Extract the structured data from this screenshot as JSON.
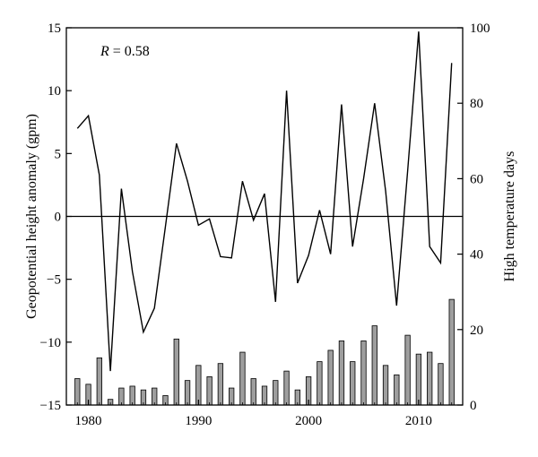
{
  "chart_data": {
    "type": "bar+line",
    "annotation": {
      "label": "R",
      "text": " = 0.58"
    },
    "x_axis": {
      "range": [
        1978,
        2014
      ],
      "ticks": [
        1980,
        1990,
        2000,
        2010
      ],
      "tick_labels": [
        "1980",
        "1990",
        "2000",
        "2010"
      ]
    },
    "y_left": {
      "label": "Geopotential height anomaly (gpm)",
      "range": [
        -15,
        15
      ],
      "ticks": [
        -15,
        -10,
        -5,
        0,
        5,
        10,
        15
      ],
      "tick_labels": [
        "−15",
        "−10",
        "−5",
        "0",
        "5",
        "10",
        "15"
      ]
    },
    "y_right": {
      "label": "High temperature days",
      "range": [
        0,
        100
      ],
      "ticks": [
        0,
        20,
        40,
        60,
        80,
        100
      ],
      "tick_labels": [
        "0",
        "20",
        "40",
        "60",
        "80",
        "100"
      ]
    },
    "series": [
      {
        "type": "line",
        "axis": "left",
        "x": [
          1979,
          1980,
          1981,
          1982,
          1983,
          1984,
          1985,
          1986,
          1987,
          1988,
          1989,
          1990,
          1991,
          1992,
          1993,
          1994,
          1995,
          1996,
          1997,
          1998,
          1999,
          2000,
          2001,
          2002,
          2003,
          2004,
          2005,
          2006,
          2007,
          2008,
          2009,
          2010,
          2011,
          2012,
          2013
        ],
        "values": [
          7.0,
          8.0,
          3.3,
          -12.3,
          2.2,
          -4.4,
          -9.2,
          -7.3,
          -0.8,
          5.8,
          2.8,
          -0.7,
          -0.2,
          -3.2,
          -3.3,
          2.8,
          -0.3,
          1.8,
          -6.8,
          10.0,
          -5.3,
          -3.1,
          0.5,
          -3.0,
          8.9,
          -2.4,
          3.0,
          9.0,
          2.0,
          -7.1,
          3.6,
          14.7,
          -2.4,
          -3.7,
          12.2
        ]
      },
      {
        "type": "bar",
        "axis": "right",
        "x": [
          1979,
          1980,
          1981,
          1982,
          1983,
          1984,
          1985,
          1986,
          1987,
          1988,
          1989,
          1990,
          1991,
          1992,
          1993,
          1994,
          1995,
          1996,
          1997,
          1998,
          1999,
          2000,
          2001,
          2002,
          2003,
          2004,
          2005,
          2006,
          2007,
          2008,
          2009,
          2010,
          2011,
          2012,
          2013
        ],
        "values": [
          7,
          5.5,
          12.5,
          1.5,
          4.5,
          5,
          4,
          4.5,
          2.5,
          17.5,
          6.5,
          10.5,
          7.5,
          11,
          4.5,
          14,
          7,
          5,
          6.5,
          9,
          4,
          7.5,
          11.5,
          14.5,
          17,
          11.5,
          17,
          21,
          10.5,
          8,
          18.5,
          13.5,
          14,
          11,
          28
        ]
      }
    ],
    "reference_lines": [
      {
        "axis": "left",
        "value": 0
      }
    ],
    "colors": {
      "bar_fill": "#9e9e9e",
      "line": "#000000"
    }
  }
}
